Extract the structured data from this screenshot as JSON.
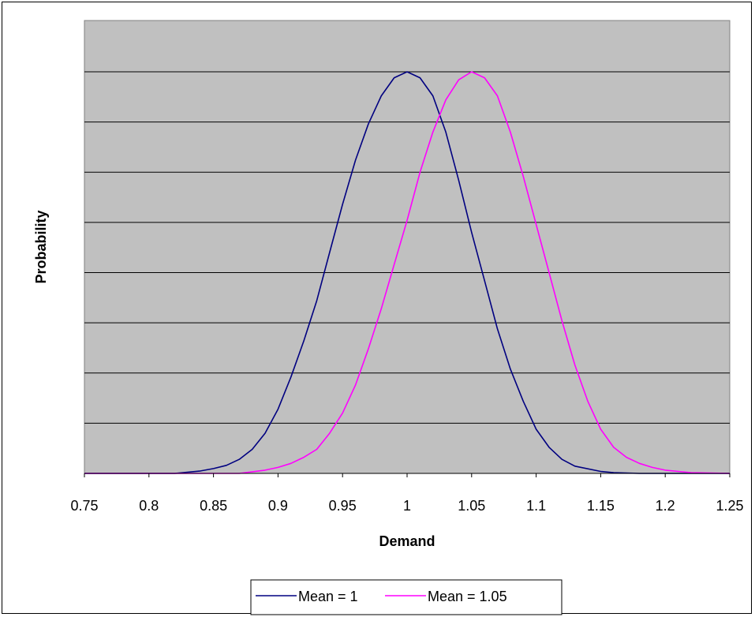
{
  "chart_data": {
    "type": "line",
    "title": "",
    "xlabel": "Demand",
    "ylabel": "Probability",
    "xlim": [
      0.75,
      1.25
    ],
    "ylim": [
      0,
      1
    ],
    "x_ticks": [
      "0.75",
      "0.8",
      "0.85",
      "0.9",
      "0.95",
      "1",
      "1.05",
      "1.1",
      "1.15",
      "1.2",
      "1.25"
    ],
    "y_tick_labels_shown": false,
    "grid": "horizontal",
    "legend": "bottom",
    "plot_background": "#c0c0c0",
    "series": [
      {
        "name": "Mean = 1",
        "color": "#000080",
        "x": [
          0.75,
          0.82,
          0.84,
          0.85,
          0.86,
          0.87,
          0.88,
          0.89,
          0.9,
          0.91,
          0.92,
          0.93,
          0.94,
          0.95,
          0.96,
          0.97,
          0.98,
          0.99,
          1.0,
          1.01,
          1.02,
          1.03,
          1.04,
          1.05,
          1.06,
          1.07,
          1.08,
          1.09,
          1.1,
          1.11,
          1.12,
          1.13,
          1.15,
          1.16,
          1.18,
          1.25
        ],
        "y": [
          0.0,
          0.0,
          0.006,
          0.012,
          0.02,
          0.035,
          0.06,
          0.1,
          0.16,
          0.24,
          0.33,
          0.43,
          0.55,
          0.67,
          0.78,
          0.87,
          0.94,
          0.985,
          1.0,
          0.985,
          0.94,
          0.85,
          0.73,
          0.6,
          0.48,
          0.36,
          0.26,
          0.18,
          0.11,
          0.065,
          0.035,
          0.018,
          0.005,
          0.002,
          0.0,
          0.0
        ]
      },
      {
        "name": "Mean = 1.05",
        "color": "#ff00ff",
        "x": [
          0.75,
          0.87,
          0.89,
          0.9,
          0.91,
          0.92,
          0.93,
          0.94,
          0.95,
          0.96,
          0.97,
          0.98,
          0.99,
          1.0,
          1.01,
          1.02,
          1.03,
          1.04,
          1.05,
          1.06,
          1.07,
          1.08,
          1.09,
          1.1,
          1.11,
          1.12,
          1.13,
          1.14,
          1.15,
          1.16,
          1.17,
          1.18,
          1.19,
          1.2,
          1.22,
          1.25
        ],
        "y": [
          0.0,
          0.0,
          0.008,
          0.015,
          0.025,
          0.04,
          0.06,
          0.1,
          0.15,
          0.22,
          0.31,
          0.41,
          0.52,
          0.63,
          0.75,
          0.85,
          0.93,
          0.98,
          1.0,
          0.985,
          0.94,
          0.85,
          0.74,
          0.62,
          0.5,
          0.38,
          0.27,
          0.18,
          0.11,
          0.065,
          0.04,
          0.025,
          0.015,
          0.008,
          0.002,
          0.0
        ]
      }
    ]
  }
}
